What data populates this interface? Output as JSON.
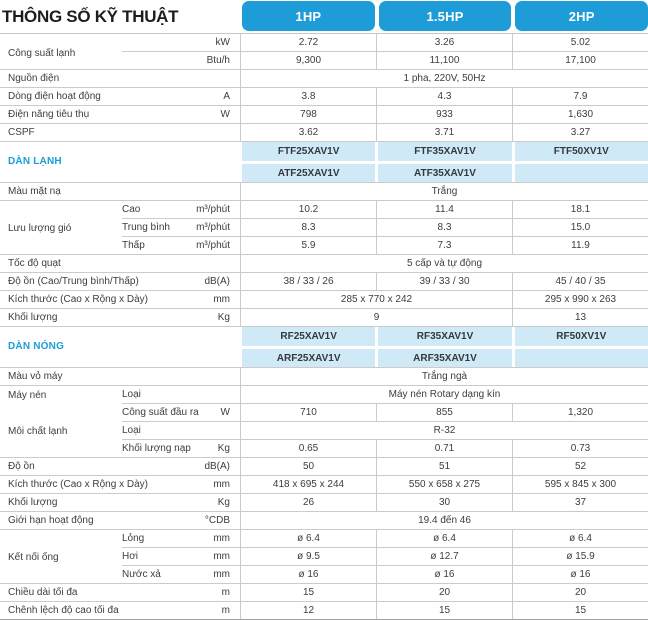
{
  "title": "THÔNG SỐ KỸ THUẬT",
  "columns": [
    "1HP",
    "1.5HP",
    "2HP"
  ],
  "colors": {
    "accent_blue": "#1e9cd7",
    "model_cell_blue": "#cfe9f6",
    "section_label_blue": "#1b9cd8",
    "grid_line": "#cbcbcb",
    "text": "#3d3d3d"
  },
  "rows": [
    {
      "label": "Công suất lạnh",
      "shift": true,
      "unit": "kW",
      "line": "partial",
      "cells": [
        {
          "text": "2.72",
          "span": 1
        },
        {
          "text": "3.26",
          "span": 1
        },
        {
          "text": "5.02",
          "span": 1
        }
      ]
    },
    {
      "unit": "Btu/h",
      "line": "full",
      "cells": [
        {
          "text": "9,300",
          "span": 1
        },
        {
          "text": "11,100",
          "span": 1
        },
        {
          "text": "17,100",
          "span": 1
        }
      ]
    },
    {
      "label": "Nguồn điện",
      "line": "full",
      "cells": [
        {
          "text": "1 pha, 220V, 50Hz",
          "span": 3
        }
      ]
    },
    {
      "label": "Dòng điện hoạt động",
      "unit": "A",
      "line": "full",
      "cells": [
        {
          "text": "3.8",
          "span": 1
        },
        {
          "text": "4.3",
          "span": 1
        },
        {
          "text": "7.9",
          "span": 1
        }
      ]
    },
    {
      "label": "Điện năng tiêu thụ",
      "unit": "W",
      "line": "full",
      "cells": [
        {
          "text": "798",
          "span": 1
        },
        {
          "text": "933",
          "span": 1
        },
        {
          "text": "1,630",
          "span": 1
        }
      ]
    },
    {
      "label": "CSPF",
      "line": "full",
      "cells": [
        {
          "text": "3.62",
          "span": 1
        },
        {
          "text": "3.71",
          "span": 1
        },
        {
          "text": "3.27",
          "span": 1
        }
      ]
    },
    {
      "label": "DÀN LẠNH",
      "section": true,
      "shift": true,
      "line": "gap",
      "models": [
        "FTF25XAV1V",
        "FTF35XAV1V",
        "FTF50XV1V"
      ]
    },
    {
      "line": "full",
      "models": [
        "ATF25XAV1V",
        "ATF35XAV1V",
        ""
      ]
    },
    {
      "label": "Màu mặt nạ",
      "line": "full",
      "cells": [
        {
          "text": "Trắng",
          "span": 3
        }
      ]
    },
    {
      "sub": "Cao",
      "unit": "m³/phút",
      "line": "partial",
      "cells": [
        {
          "text": "10.2",
          "span": 1
        },
        {
          "text": "11.4",
          "span": 1
        },
        {
          "text": "18.1",
          "span": 1
        }
      ]
    },
    {
      "label": "Lưu lượng gió",
      "sub": "Trung bình",
      "unit": "m³/phút",
      "line": "partial",
      "cells": [
        {
          "text": "8.3",
          "span": 1
        },
        {
          "text": "8.3",
          "span": 1
        },
        {
          "text": "15.0",
          "span": 1
        }
      ]
    },
    {
      "sub": "Thấp",
      "unit": "m³/phút",
      "line": "full",
      "cells": [
        {
          "text": "5.9",
          "span": 1
        },
        {
          "text": "7.3",
          "span": 1
        },
        {
          "text": "11.9",
          "span": 1
        }
      ]
    },
    {
      "label": "Tốc độ quạt",
      "line": "full",
      "cells": [
        {
          "text": "5 cấp và tự động",
          "span": 3
        }
      ]
    },
    {
      "label": "Độ ồn (Cao/Trung bình/Thấp)",
      "unit": "dB(A)",
      "line": "full",
      "cells": [
        {
          "text": "38 / 33 / 26",
          "span": 1
        },
        {
          "text": "39 / 33 / 30",
          "span": 1
        },
        {
          "text": "45 / 40 / 35",
          "span": 1
        }
      ]
    },
    {
      "label": "Kích thước (Cao x Rộng x Dày)",
      "unit": "mm",
      "line": "full",
      "cells": [
        {
          "text": "285 x 770 x 242",
          "span": 2
        },
        {
          "text": "295 x 990 x 263",
          "span": 1
        }
      ]
    },
    {
      "label": "Khối lượng",
      "unit": "Kg",
      "line": "full",
      "cells": [
        {
          "text": "9",
          "span": 2
        },
        {
          "text": "13",
          "span": 1
        }
      ]
    },
    {
      "label": "DÀN NÓNG",
      "section": true,
      "shift": true,
      "line": "gap",
      "models": [
        "RF25XAV1V",
        "RF35XAV1V",
        "RF50XV1V"
      ]
    },
    {
      "line": "full",
      "models": [
        "ARF25XAV1V",
        "ARF35XAV1V",
        ""
      ]
    },
    {
      "label": "Màu vỏ máy",
      "line": "full",
      "cells": [
        {
          "text": "Trắng ngà",
          "span": 3
        }
      ]
    },
    {
      "label": "Máy nén",
      "sub": "Loại",
      "line": "partial",
      "cells": [
        {
          "text": "Máy nén Rotary dạng kín",
          "span": 3
        }
      ]
    },
    {
      "sub": "Công suất đầu ra",
      "unit": "W",
      "line": "partial",
      "cells": [
        {
          "text": "710",
          "span": 1
        },
        {
          "text": "855",
          "span": 1
        },
        {
          "text": "1,320",
          "span": 1
        }
      ]
    },
    {
      "label": "Môi chất lạnh",
      "sub": "Loại",
      "line": "partial",
      "cells": [
        {
          "text": "R-32",
          "span": 3
        }
      ]
    },
    {
      "sub": "Khối lượng nạp",
      "unit": "Kg",
      "line": "full",
      "cells": [
        {
          "text": "0.65",
          "span": 1
        },
        {
          "text": "0.71",
          "span": 1
        },
        {
          "text": "0.73",
          "span": 1
        }
      ]
    },
    {
      "label": "Độ ồn",
      "unit": "dB(A)",
      "line": "full",
      "cells": [
        {
          "text": "50",
          "span": 1
        },
        {
          "text": "51",
          "span": 1
        },
        {
          "text": "52",
          "span": 1
        }
      ]
    },
    {
      "label": "Kích thước (Cao x Rộng x Dày)",
      "unit": "mm",
      "line": "full",
      "cells": [
        {
          "text": "418 x 695 x 244",
          "span": 1
        },
        {
          "text": "550 x 658 x 275",
          "span": 1
        },
        {
          "text": "595 x 845 x 300",
          "span": 1
        }
      ]
    },
    {
      "label": "Khối lượng",
      "unit": "Kg",
      "line": "full",
      "cells": [
        {
          "text": "26",
          "span": 1
        },
        {
          "text": "30",
          "span": 1
        },
        {
          "text": "37",
          "span": 1
        }
      ]
    },
    {
      "label": "Giới hạn hoạt động",
      "unit": "°CDB",
      "line": "full",
      "cells": [
        {
          "text": "19.4 đến 46",
          "span": 3
        }
      ]
    },
    {
      "sub": "Lỏng",
      "unit": "mm",
      "line": "partial",
      "cells": [
        {
          "text": "ø 6.4",
          "span": 1
        },
        {
          "text": "ø 6.4",
          "span": 1
        },
        {
          "text": "ø 6.4",
          "span": 1
        }
      ]
    },
    {
      "label": "Kết nối ống",
      "sub": "Hơi",
      "unit": "mm",
      "line": "partial",
      "cells": [
        {
          "text": "ø 9.5",
          "span": 1
        },
        {
          "text": "ø 12.7",
          "span": 1
        },
        {
          "text": "ø 15.9",
          "span": 1
        }
      ]
    },
    {
      "sub": "Nước xả",
      "unit": "mm",
      "line": "full",
      "cells": [
        {
          "text": "ø 16",
          "span": 1
        },
        {
          "text": "ø 16",
          "span": 1
        },
        {
          "text": "ø 16",
          "span": 1
        }
      ]
    },
    {
      "label": "Chiều dài tối đa",
      "unit": "m",
      "line": "full",
      "cells": [
        {
          "text": "15",
          "span": 1
        },
        {
          "text": "20",
          "span": 1
        },
        {
          "text": "20",
          "span": 1
        }
      ]
    },
    {
      "label": "Chênh lệch độ cao tối đa",
      "unit": "m",
      "line": "last",
      "cells": [
        {
          "text": "12",
          "span": 1
        },
        {
          "text": "15",
          "span": 1
        },
        {
          "text": "15",
          "span": 1
        }
      ]
    }
  ]
}
